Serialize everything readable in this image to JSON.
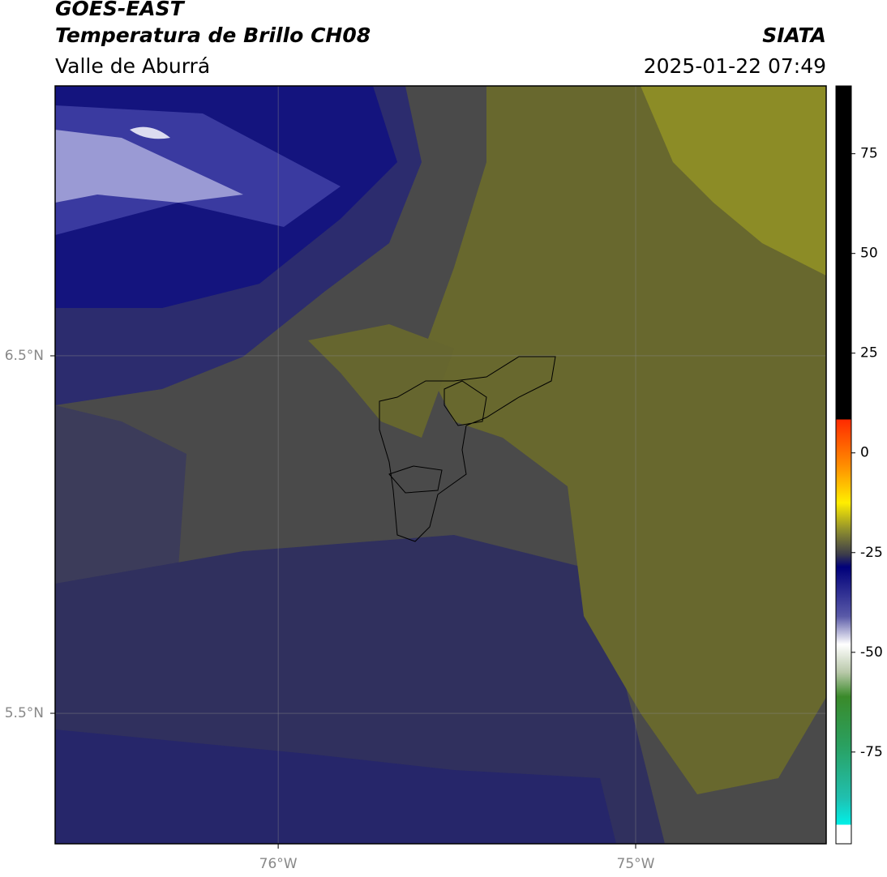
{
  "header": {
    "title": "GOES-EAST",
    "subtitle": "Temperatura de Brillo CH08",
    "region": "Valle de Aburrá",
    "source": "SIATA",
    "timestamp": "2025-01-22 07:49"
  },
  "map": {
    "lonlim": [
      -76.624,
      -74.467
    ],
    "latlim": [
      5.135,
      7.255
    ],
    "lonticks": [
      {
        "value": -76,
        "label": "76°W"
      },
      {
        "value": -75,
        "label": "75°W"
      }
    ],
    "latticks": [
      {
        "value": 6.5,
        "label": "6.5°N"
      },
      {
        "value": 5.5,
        "label": "5.5°N"
      }
    ],
    "grid": true
  },
  "colorbar": {
    "lim": [
      -98,
      92
    ],
    "ticks": [
      75,
      50,
      25,
      0,
      -25,
      -50,
      -75
    ]
  }
}
